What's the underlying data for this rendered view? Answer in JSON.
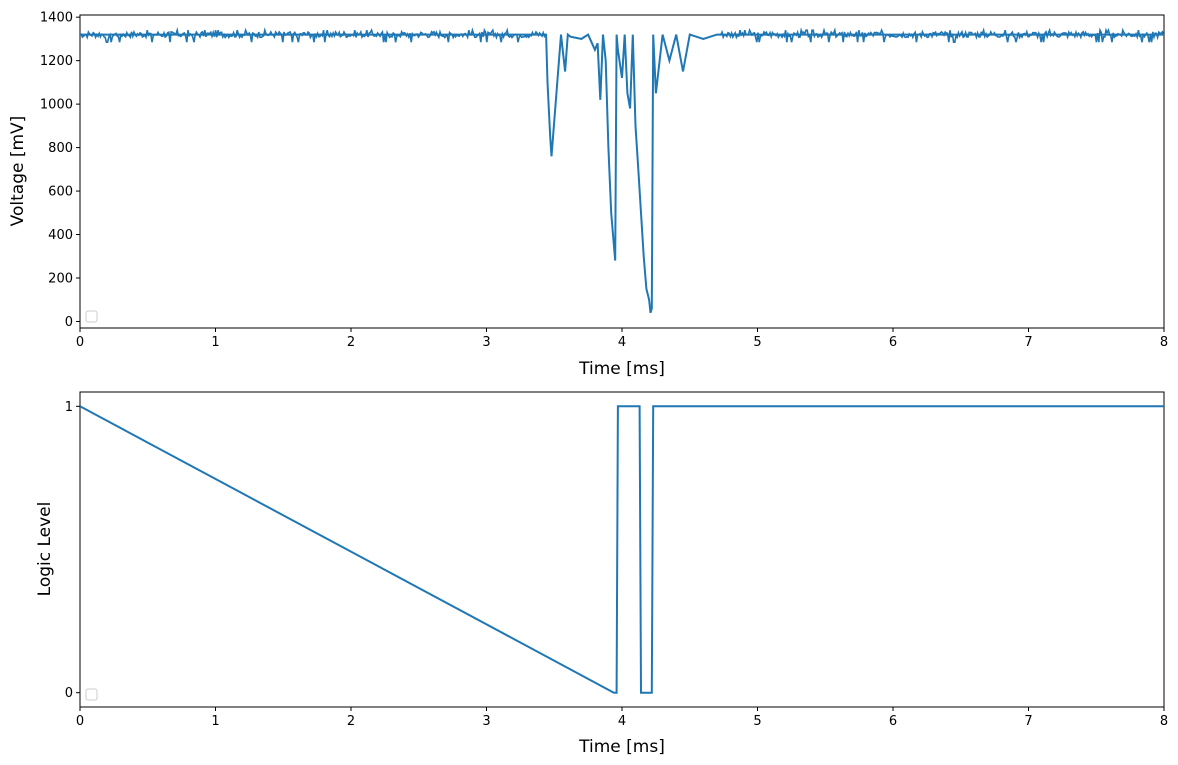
{
  "chart_data": [
    {
      "type": "line",
      "title": "",
      "xlabel": "Time [ms]",
      "ylabel": "Voltage [mV]",
      "xlim": [
        0,
        8
      ],
      "ylim": [
        -30,
        1410
      ],
      "xticks": [
        0,
        1,
        2,
        3,
        4,
        5,
        6,
        7,
        8
      ],
      "yticks": [
        0,
        200,
        400,
        600,
        800,
        1000,
        1200,
        1400
      ],
      "legend": "lower-left, empty",
      "grid": false,
      "color": "#1f77b4",
      "baseline_mV": 1320,
      "baseline_noise_range_mV": [
        1285,
        1340
      ],
      "series": [
        {
          "x": [
            0.0,
            3.44,
            3.45,
            3.47,
            3.48,
            3.55,
            3.58,
            3.6,
            3.62,
            3.7,
            3.75,
            3.8,
            3.82,
            3.84,
            3.86,
            3.88,
            3.9,
            3.92,
            3.94,
            3.95,
            3.96,
            3.97,
            4.0,
            4.02,
            4.04,
            4.06,
            4.08,
            4.1,
            4.12,
            4.14,
            4.16,
            4.18,
            4.2,
            4.21,
            4.22,
            4.23,
            4.25,
            4.3,
            4.35,
            4.4,
            4.45,
            4.5,
            4.6,
            4.7,
            8.0
          ],
          "y": [
            1320,
            1320,
            1100,
            850,
            760,
            1320,
            1150,
            1320,
            1310,
            1300,
            1320,
            1250,
            1280,
            1020,
            1320,
            1200,
            800,
            500,
            350,
            280,
            1320,
            1250,
            1120,
            1320,
            1050,
            980,
            1320,
            900,
            700,
            500,
            300,
            150,
            100,
            40,
            60,
            1320,
            1050,
            1320,
            1200,
            1320,
            1150,
            1320,
            1300,
            1320,
            1320
          ]
        }
      ]
    },
    {
      "type": "line",
      "title": "",
      "xlabel": "Time [ms]",
      "ylabel": "Logic Level",
      "xlim": [
        0,
        8
      ],
      "ylim": [
        -0.05,
        1.05
      ],
      "xticks": [
        0,
        1,
        2,
        3,
        4,
        5,
        6,
        7,
        8
      ],
      "yticks": [
        0,
        1
      ],
      "legend": "lower-left, empty",
      "grid": false,
      "color": "#1f77b4",
      "series": [
        {
          "step": true,
          "x": [
            0.0,
            3.94,
            3.96,
            3.97,
            4.13,
            4.14,
            4.22,
            4.23,
            8.0
          ],
          "y": [
            1,
            0,
            0,
            1,
            1,
            0,
            0,
            1,
            1
          ]
        }
      ]
    }
  ]
}
